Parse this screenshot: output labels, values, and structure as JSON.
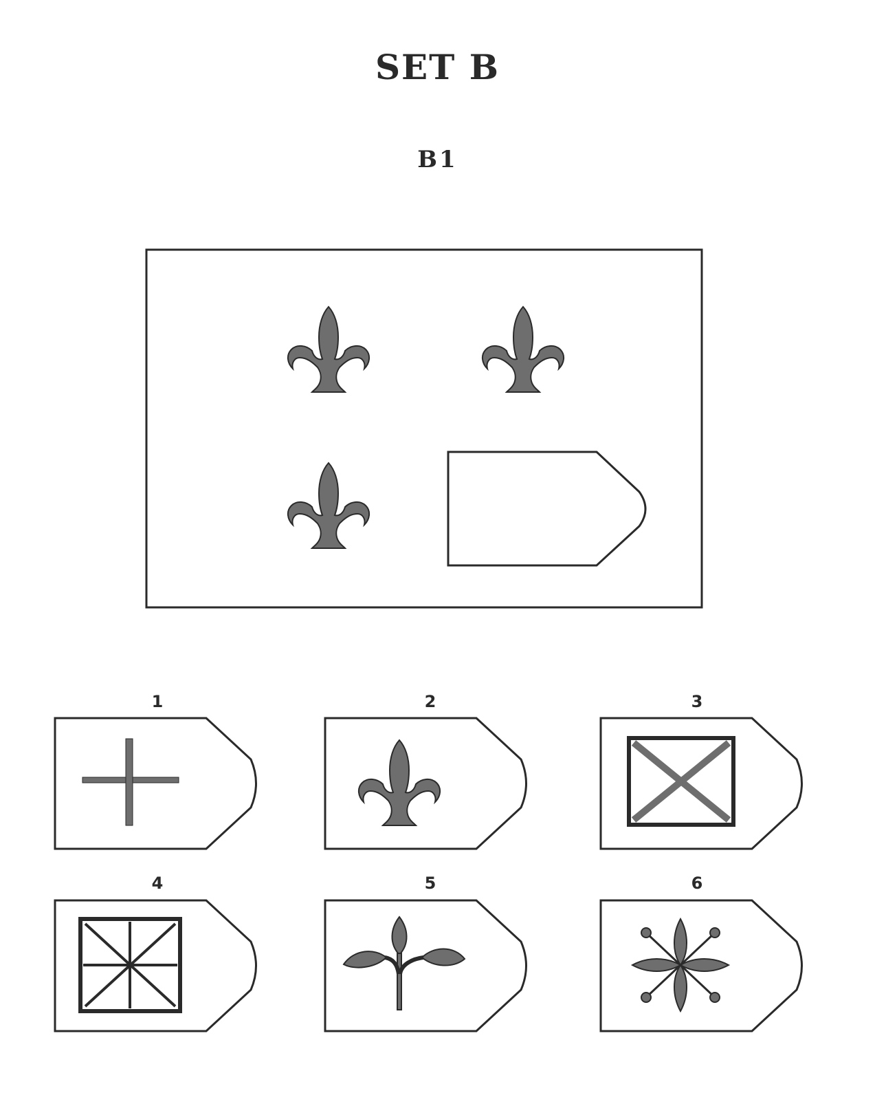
{
  "header": {
    "set_title": "SET B",
    "problem_label": "B1"
  },
  "matrix": {
    "cells": [
      {
        "position": "top-left",
        "figure": "fleur-de-lis"
      },
      {
        "position": "top-right",
        "figure": "fleur-de-lis"
      },
      {
        "position": "bottom-left",
        "figure": "fleur-de-lis"
      },
      {
        "position": "bottom-right",
        "figure": "missing"
      }
    ]
  },
  "options": [
    {
      "number": "1",
      "figure": "plus-cross-icon"
    },
    {
      "number": "2",
      "figure": "fleur-de-lis-icon"
    },
    {
      "number": "3",
      "figure": "square-with-x-icon"
    },
    {
      "number": "4",
      "figure": "square-with-star-icon"
    },
    {
      "number": "5",
      "figure": "three-leaf-sprig-icon"
    },
    {
      "number": "6",
      "figure": "four-petal-star-icon"
    }
  ],
  "colors": {
    "ink": "#2a2a2a",
    "fill": "#6e6e6e",
    "background": "#ffffff"
  }
}
